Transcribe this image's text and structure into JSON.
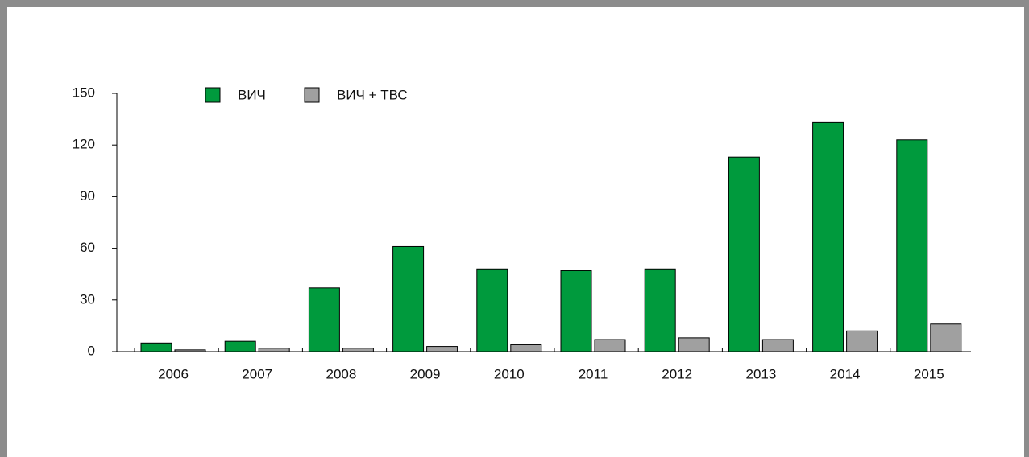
{
  "chart_data": {
    "type": "bar",
    "categories": [
      "2006",
      "2007",
      "2008",
      "2009",
      "2010",
      "2011",
      "2012",
      "2013",
      "2014",
      "2015"
    ],
    "series": [
      {
        "name": "ВИЧ",
        "color": "#009a3d",
        "values": [
          5,
          6,
          37,
          61,
          48,
          47,
          48,
          113,
          133,
          123
        ]
      },
      {
        "name": "ВИЧ + ТВС",
        "color": "#a0a0a0",
        "values": [
          1,
          2,
          2,
          3,
          4,
          7,
          8,
          7,
          12,
          16
        ]
      }
    ],
    "ylim": [
      0,
      150
    ],
    "yticks": [
      0,
      30,
      60,
      90,
      120,
      150
    ],
    "legend": "top-left"
  }
}
